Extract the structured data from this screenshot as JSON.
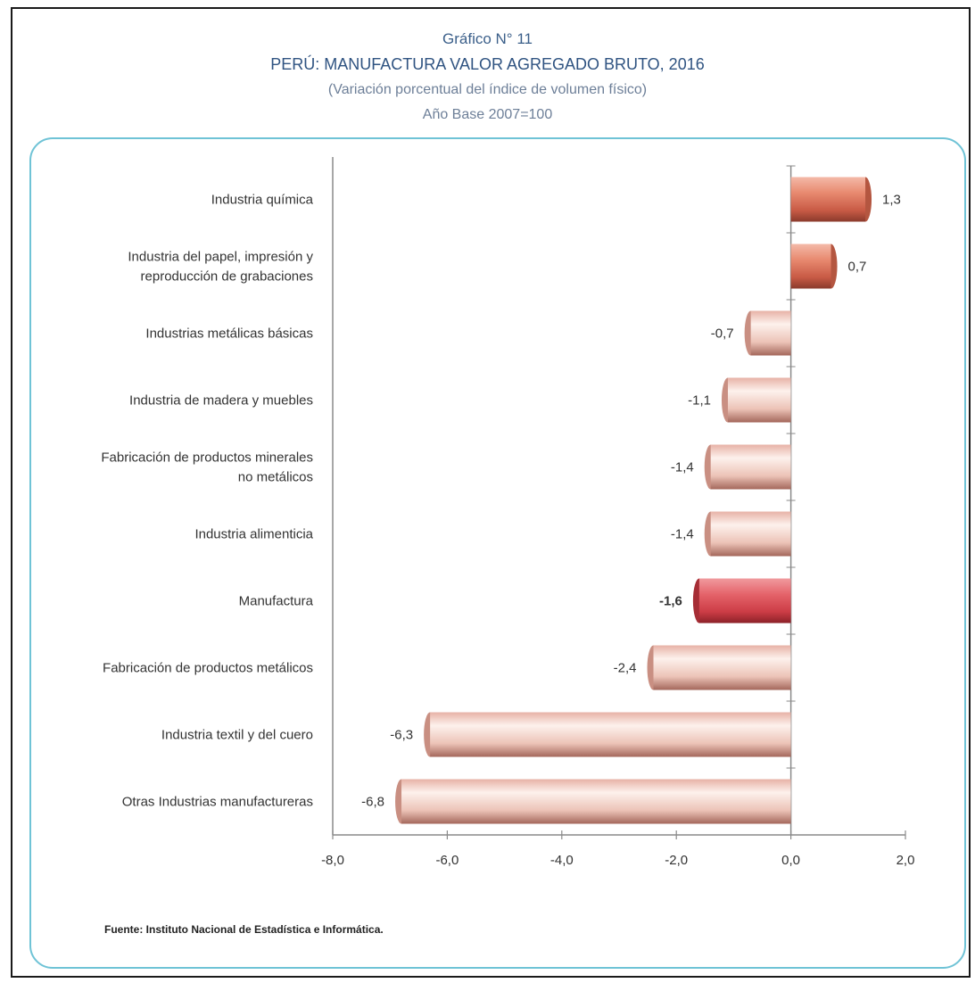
{
  "header": {
    "number": "Gráfico N° 11",
    "title": "PERÚ: MANUFACTURA VALOR AGREGADO BRUTO, 2016",
    "subtitle": "(Variación porcentual del índice de volumen físico)",
    "base": "Año Base 2007=100"
  },
  "source": "Fuente: Instituto Nacional de Estadística e Informática.",
  "colors": {
    "positive_bar": "#d9735a",
    "negative_bar": "#f0c7bb",
    "highlight_bar": "#d9444c",
    "panel_border": "#6fc3d6",
    "title": "#2f5381"
  },
  "chart_data": {
    "type": "bar",
    "orientation": "horizontal",
    "categories": [
      [
        "Industria química"
      ],
      [
        "Industria del papel, impresión y",
        "reproducción de grabaciones"
      ],
      [
        "Industrias metálicas básicas"
      ],
      [
        "Industria de madera y muebles"
      ],
      [
        "Fabricación de productos minerales",
        "no metálicos"
      ],
      [
        "Industria alimenticia"
      ],
      [
        "Manufactura"
      ],
      [
        "Fabricación de productos  metálicos"
      ],
      [
        "Industria textil y del cuero"
      ],
      [
        "Otras Industrias manufactureras"
      ]
    ],
    "values": [
      1.3,
      0.7,
      -0.7,
      -1.1,
      -1.4,
      -1.4,
      -1.6,
      -2.4,
      -6.3,
      -6.8
    ],
    "value_labels": [
      "1,3",
      "0,7",
      "-0,7",
      "-1,1",
      "-1,4",
      "-1,4",
      "-1,6",
      "-2,4",
      "-6,3",
      "-6,8"
    ],
    "highlight_index": 6,
    "xlim": [
      -8,
      2
    ],
    "xticks": [
      -8,
      -6,
      -4,
      -2,
      0,
      2
    ],
    "xtick_labels": [
      "-8,0",
      "-6,0",
      "-4,0",
      "-2,0",
      "0,0",
      "2,0"
    ],
    "grid": false,
    "legend": "none"
  }
}
